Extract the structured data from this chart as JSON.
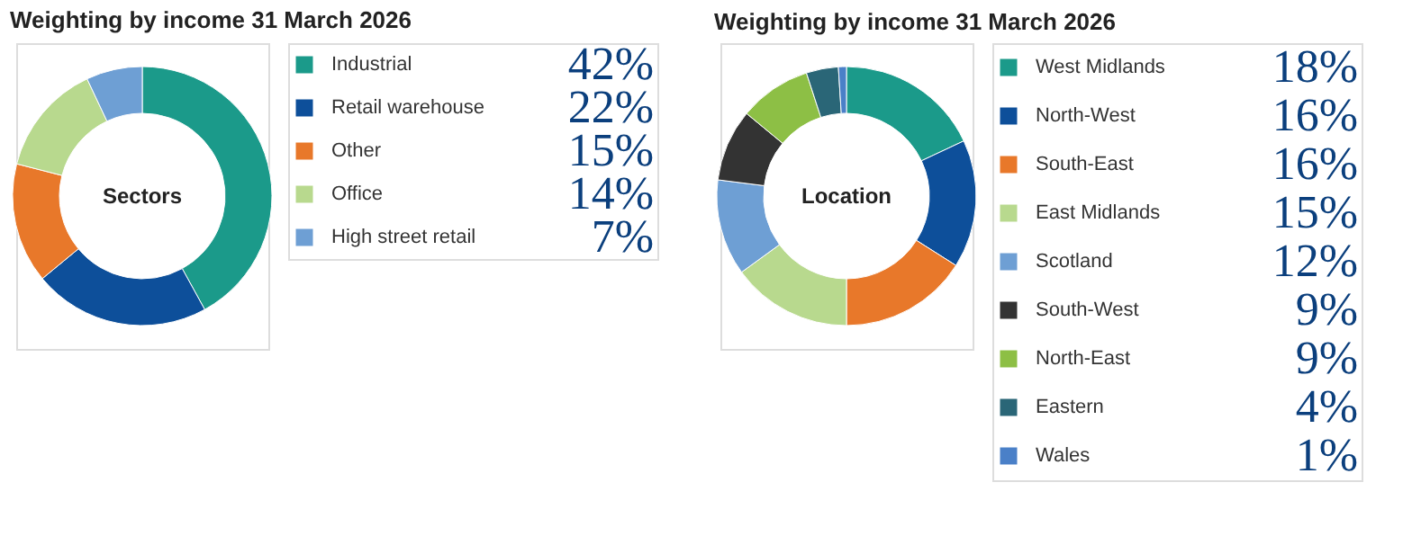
{
  "chart_data": [
    {
      "type": "donut",
      "title": "Weighting by income 31 March 2026",
      "annotations": [
        "Sectors"
      ],
      "legend": "right",
      "categories": [
        "Industrial",
        "Retail warehouse",
        "Other",
        "Office",
        "High street retail"
      ],
      "values": [
        42,
        22,
        15,
        14,
        7
      ],
      "value_labels": [
        "42%",
        "22%",
        "15%",
        "14%",
        "7%"
      ],
      "colors": [
        "#1b9a8a",
        "#0d4f9a",
        "#e8782a",
        "#b8d98e",
        "#6e9fd4"
      ]
    },
    {
      "type": "donut",
      "title": "Weighting by income 31 March 2026",
      "annotations": [
        "Location"
      ],
      "legend": "right",
      "categories": [
        "West Midlands",
        "North-West",
        "South-East",
        "East Midlands",
        "Scotland",
        "South-West",
        "North-East",
        "Eastern",
        "Wales"
      ],
      "values": [
        18,
        16,
        16,
        15,
        12,
        9,
        9,
        4,
        1
      ],
      "value_labels": [
        "18%",
        "16%",
        "16%",
        "15%",
        "12%",
        "9%",
        "9%",
        "4%",
        "1%"
      ],
      "colors": [
        "#1b9a8a",
        "#0d4f9a",
        "#e8782a",
        "#b8d98e",
        "#6e9fd4",
        "#333333",
        "#8dbf45",
        "#2a6677",
        "#4a80c8"
      ]
    }
  ]
}
